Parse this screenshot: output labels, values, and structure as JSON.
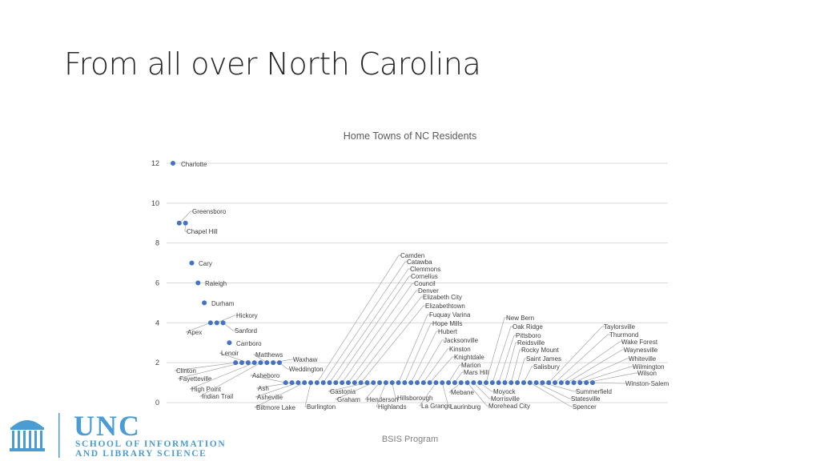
{
  "slide": {
    "title": "From all over North Carolina",
    "footer": "BSIS Program"
  },
  "logo": {
    "line1": "UNC",
    "line2": "SCHOOL OF INFORMATION",
    "line3": "AND LIBRARY SCIENCE",
    "icon": "old-well-icon"
  },
  "colors": {
    "marker": "#4472C4",
    "grid": "#d9d9d9",
    "leader": "#a6a6a6",
    "text": "#404040",
    "logo": "#4B9CD3"
  },
  "chart_data": {
    "type": "scatter",
    "title": "Home Towns of NC Residents",
    "xlabel": "",
    "ylabel": "",
    "ylim": [
      0,
      12
    ],
    "yticks": [
      0,
      2,
      4,
      6,
      8,
      10,
      12
    ],
    "grid": true,
    "legend": "none",
    "x_axis_labels": "none",
    "points": [
      {
        "label": "Charlotte",
        "value": 12
      },
      {
        "label": "Greensboro",
        "value": 9
      },
      {
        "label": "Chapel Hill",
        "value": 9
      },
      {
        "label": "Cary",
        "value": 7
      },
      {
        "label": "Raleigh",
        "value": 6
      },
      {
        "label": "Durham",
        "value": 5
      },
      {
        "label": "Apex",
        "value": 4
      },
      {
        "label": "Hickory",
        "value": 4
      },
      {
        "label": "Sanford",
        "value": 4
      },
      {
        "label": "Carrboro",
        "value": 3
      },
      {
        "label": "Clinton",
        "value": 2
      },
      {
        "label": "Fayetteville",
        "value": 2
      },
      {
        "label": "Lenoir",
        "value": 2
      },
      {
        "label": "High Point",
        "value": 2
      },
      {
        "label": "Indian Trail",
        "value": 2
      },
      {
        "label": "Matthews",
        "value": 2
      },
      {
        "label": "Waxhaw",
        "value": 2
      },
      {
        "label": "Weddington",
        "value": 2
      },
      {
        "label": "Asheboro",
        "value": 1
      },
      {
        "label": "Ash",
        "value": 1
      },
      {
        "label": "Asheville",
        "value": 1
      },
      {
        "label": "Biltmore Lake",
        "value": 1
      },
      {
        "label": "Burlington",
        "value": 1
      },
      {
        "label": "Camden",
        "value": 1
      },
      {
        "label": "Catawba",
        "value": 1
      },
      {
        "label": "Clemmons",
        "value": 1
      },
      {
        "label": "Cornelius",
        "value": 1
      },
      {
        "label": "Council",
        "value": 1
      },
      {
        "label": "Denver",
        "value": 1
      },
      {
        "label": "Elizabeth City",
        "value": 1
      },
      {
        "label": "Elizabethtown",
        "value": 1
      },
      {
        "label": "Gastonia",
        "value": 1
      },
      {
        "label": "Graham",
        "value": 1
      },
      {
        "label": "Henderson",
        "value": 1
      },
      {
        "label": "Highlands",
        "value": 1
      },
      {
        "label": "Hillsborough",
        "value": 1
      },
      {
        "label": "Fuquay Varina",
        "value": 1
      },
      {
        "label": "Hope Mills",
        "value": 1
      },
      {
        "label": "Hubert",
        "value": 1
      },
      {
        "label": "Jacksonville",
        "value": 1
      },
      {
        "label": "Kinston",
        "value": 1
      },
      {
        "label": "Knightdale",
        "value": 1
      },
      {
        "label": "La Grange",
        "value": 1
      },
      {
        "label": "Laurinburg",
        "value": 1
      },
      {
        "label": "Marion",
        "value": 1
      },
      {
        "label": "Mars Hill",
        "value": 1
      },
      {
        "label": "Mebane",
        "value": 1
      },
      {
        "label": "Morehead City",
        "value": 1
      },
      {
        "label": "Morrisville",
        "value": 1
      },
      {
        "label": "Moyock",
        "value": 1
      },
      {
        "label": "New Bern",
        "value": 1
      },
      {
        "label": "Oak Ridge",
        "value": 1
      },
      {
        "label": "Pittsboro",
        "value": 1
      },
      {
        "label": "Reidsville",
        "value": 1
      },
      {
        "label": "Rocky Mount",
        "value": 1
      },
      {
        "label": "Saint James",
        "value": 1
      },
      {
        "label": "Salisbury",
        "value": 1
      },
      {
        "label": "Spencer",
        "value": 1
      },
      {
        "label": "Statesville",
        "value": 1
      },
      {
        "label": "Summerfield",
        "value": 1
      },
      {
        "label": "Taylorsville",
        "value": 1
      },
      {
        "label": "Thurmond",
        "value": 1
      },
      {
        "label": "Wake Forest",
        "value": 1
      },
      {
        "label": "Waynesville",
        "value": 1
      },
      {
        "label": "Whiteville",
        "value": 1
      },
      {
        "label": "Wilmington",
        "value": 1
      },
      {
        "label": "Wilson",
        "value": 1
      },
      {
        "label": "Winston-Salem",
        "value": 1
      }
    ]
  }
}
